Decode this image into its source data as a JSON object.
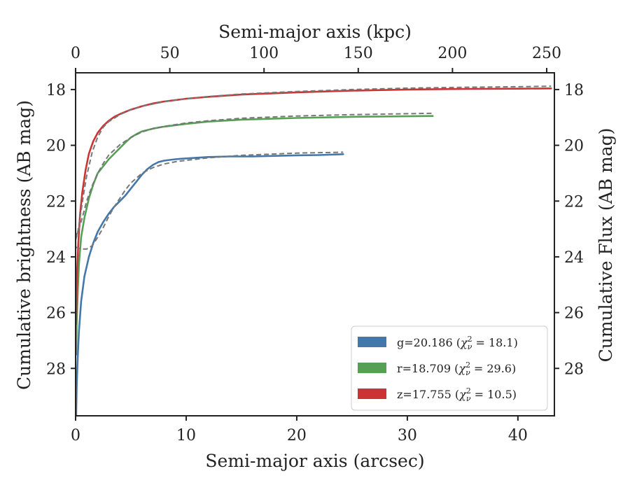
{
  "chart_data": {
    "type": "line",
    "xlabel": "Semi-major axis (arcsec)",
    "top_xlabel": "Semi-major axis (kpc)",
    "ylabel": "Cumulative brightness (AB mag)",
    "right_ylabel": "Cumulative Flux (AB mag)",
    "xlim": [
      0,
      43.3
    ],
    "ylim": [
      29.7,
      17.4
    ],
    "y_inverted": true,
    "x_ticks": [
      0,
      10,
      20,
      30,
      40
    ],
    "x_tick_labels": [
      "0",
      "10",
      "20",
      "30",
      "40"
    ],
    "top_x_ticks": [
      0,
      50,
      100,
      150,
      200,
      250
    ],
    "top_x_tick_labels": [
      "0",
      "50",
      "100",
      "150",
      "200",
      "250"
    ],
    "top_kpc_per_arcsec": 5.868,
    "y_ticks": [
      18,
      20,
      22,
      24,
      26,
      28
    ],
    "y_tick_labels": [
      "18",
      "20",
      "22",
      "24",
      "26",
      "28"
    ],
    "grid": false,
    "legend_position": "bottom-right",
    "series": [
      {
        "name": "g=20.186 ($\\chi^2_\\nu=18.1$)",
        "label_main": "g=20.186 (",
        "label_math": "χ",
        "label_sup": "2",
        "label_sub": "ν",
        "label_tail": " = 18.1)",
        "color": "#4477aa",
        "x": [
          0.05,
          0.1,
          0.2,
          0.3,
          0.5,
          0.8,
          1.2,
          1.6,
          2.0,
          2.5,
          3.0,
          3.5,
          4.0,
          4.5,
          5.0,
          5.5,
          6.0,
          6.5,
          7.0,
          7.5,
          8.0,
          9.0,
          10.0,
          12.0,
          14.0,
          16.0,
          18.0,
          20.0,
          22.0,
          24.2
        ],
        "y": [
          29.7,
          28.6,
          27.5,
          26.7,
          25.6,
          24.7,
          24.0,
          23.5,
          23.1,
          22.75,
          22.45,
          22.2,
          22.0,
          21.8,
          21.55,
          21.3,
          21.05,
          20.85,
          20.7,
          20.6,
          20.55,
          20.5,
          20.47,
          20.42,
          20.4,
          20.4,
          20.38,
          20.36,
          20.35,
          20.32
        ],
        "model_x": [
          0.0,
          0.5,
          1.0,
          1.5,
          2.0,
          2.5,
          3.0,
          3.5,
          4.0,
          4.5,
          5.0,
          6.0,
          7.0,
          8.0,
          9.0,
          10.0,
          12.0,
          15.0,
          20.0,
          24.2
        ],
        "model_y": [
          23.65,
          23.72,
          23.72,
          23.6,
          23.3,
          22.95,
          22.55,
          22.2,
          21.9,
          21.6,
          21.35,
          21.0,
          20.8,
          20.67,
          20.59,
          20.54,
          20.45,
          20.36,
          20.28,
          20.25
        ]
      },
      {
        "name": "r=18.709 ($\\chi^2_\\nu=29.6$)",
        "label_main": "r=18.709 (",
        "label_math": "χ",
        "label_sup": "2",
        "label_sub": "ν",
        "label_tail": " = 29.6)",
        "color": "#55a055",
        "x": [
          0.05,
          0.1,
          0.2,
          0.3,
          0.5,
          0.8,
          1.2,
          1.6,
          2.0,
          2.5,
          3.0,
          3.5,
          4.0,
          4.5,
          5.0,
          5.5,
          6.0,
          7.0,
          8.0,
          9.0,
          10.0,
          12.0,
          15.0,
          20.0,
          25.0,
          30.0,
          32.3
        ],
        "y": [
          27.5,
          26.3,
          25.2,
          24.3,
          23.3,
          22.6,
          21.9,
          21.4,
          21.0,
          20.75,
          20.5,
          20.3,
          20.1,
          19.9,
          19.72,
          19.6,
          19.5,
          19.4,
          19.33,
          19.28,
          19.23,
          19.15,
          19.08,
          19.02,
          18.98,
          18.96,
          18.95
        ],
        "model_x": [
          0.0,
          0.3,
          0.6,
          1.0,
          1.5,
          2.0,
          2.5,
          3.0,
          4.0,
          5.0,
          6.0,
          7.0,
          8.0,
          10.0,
          12.0,
          15.0,
          20.0,
          25.0,
          32.3
        ],
        "model_y": [
          23.3,
          23.0,
          22.6,
          22.0,
          21.45,
          21.0,
          20.65,
          20.35,
          19.98,
          19.72,
          19.52,
          19.4,
          19.32,
          19.2,
          19.12,
          19.03,
          18.95,
          18.9,
          18.85
        ]
      },
      {
        "name": "z=17.755 ($\\chi^2_\\nu=10.5$)",
        "label_main": "z=17.755 (",
        "label_math": "χ",
        "label_sup": "2",
        "label_sub": "ν",
        "label_tail": " = 10.5)",
        "color": "#cc3333",
        "x": [
          0.05,
          0.1,
          0.15,
          0.25,
          0.4,
          0.6,
          0.9,
          1.2,
          1.6,
          2.0,
          2.5,
          3.0,
          3.5,
          4.0,
          5.0,
          6.0,
          7.0,
          8.0,
          10.0,
          12.0,
          15.0,
          20.0,
          25.0,
          30.0,
          35.0,
          40.0,
          43.0
        ],
        "y": [
          26.4,
          25.2,
          24.4,
          23.5,
          22.5,
          21.7,
          20.9,
          20.3,
          19.85,
          19.55,
          19.3,
          19.12,
          18.98,
          18.88,
          18.72,
          18.6,
          18.5,
          18.43,
          18.33,
          18.26,
          18.18,
          18.1,
          18.04,
          18.0,
          17.98,
          17.97,
          17.96
        ],
        "model_x": [
          0.0,
          0.2,
          0.4,
          0.7,
          1.0,
          1.5,
          2.0,
          2.5,
          3.0,
          4.0,
          5.0,
          6.0,
          8.0,
          10.0,
          12.0,
          15.0,
          20.0,
          25.0,
          30.0,
          35.0,
          40.0,
          43.0
        ],
        "model_y": [
          23.4,
          23.1,
          22.6,
          21.8,
          21.1,
          20.25,
          19.7,
          19.35,
          19.15,
          18.9,
          18.72,
          18.6,
          18.44,
          18.33,
          18.25,
          18.16,
          18.07,
          18.0,
          17.95,
          17.92,
          17.9,
          17.88
        ]
      }
    ]
  }
}
